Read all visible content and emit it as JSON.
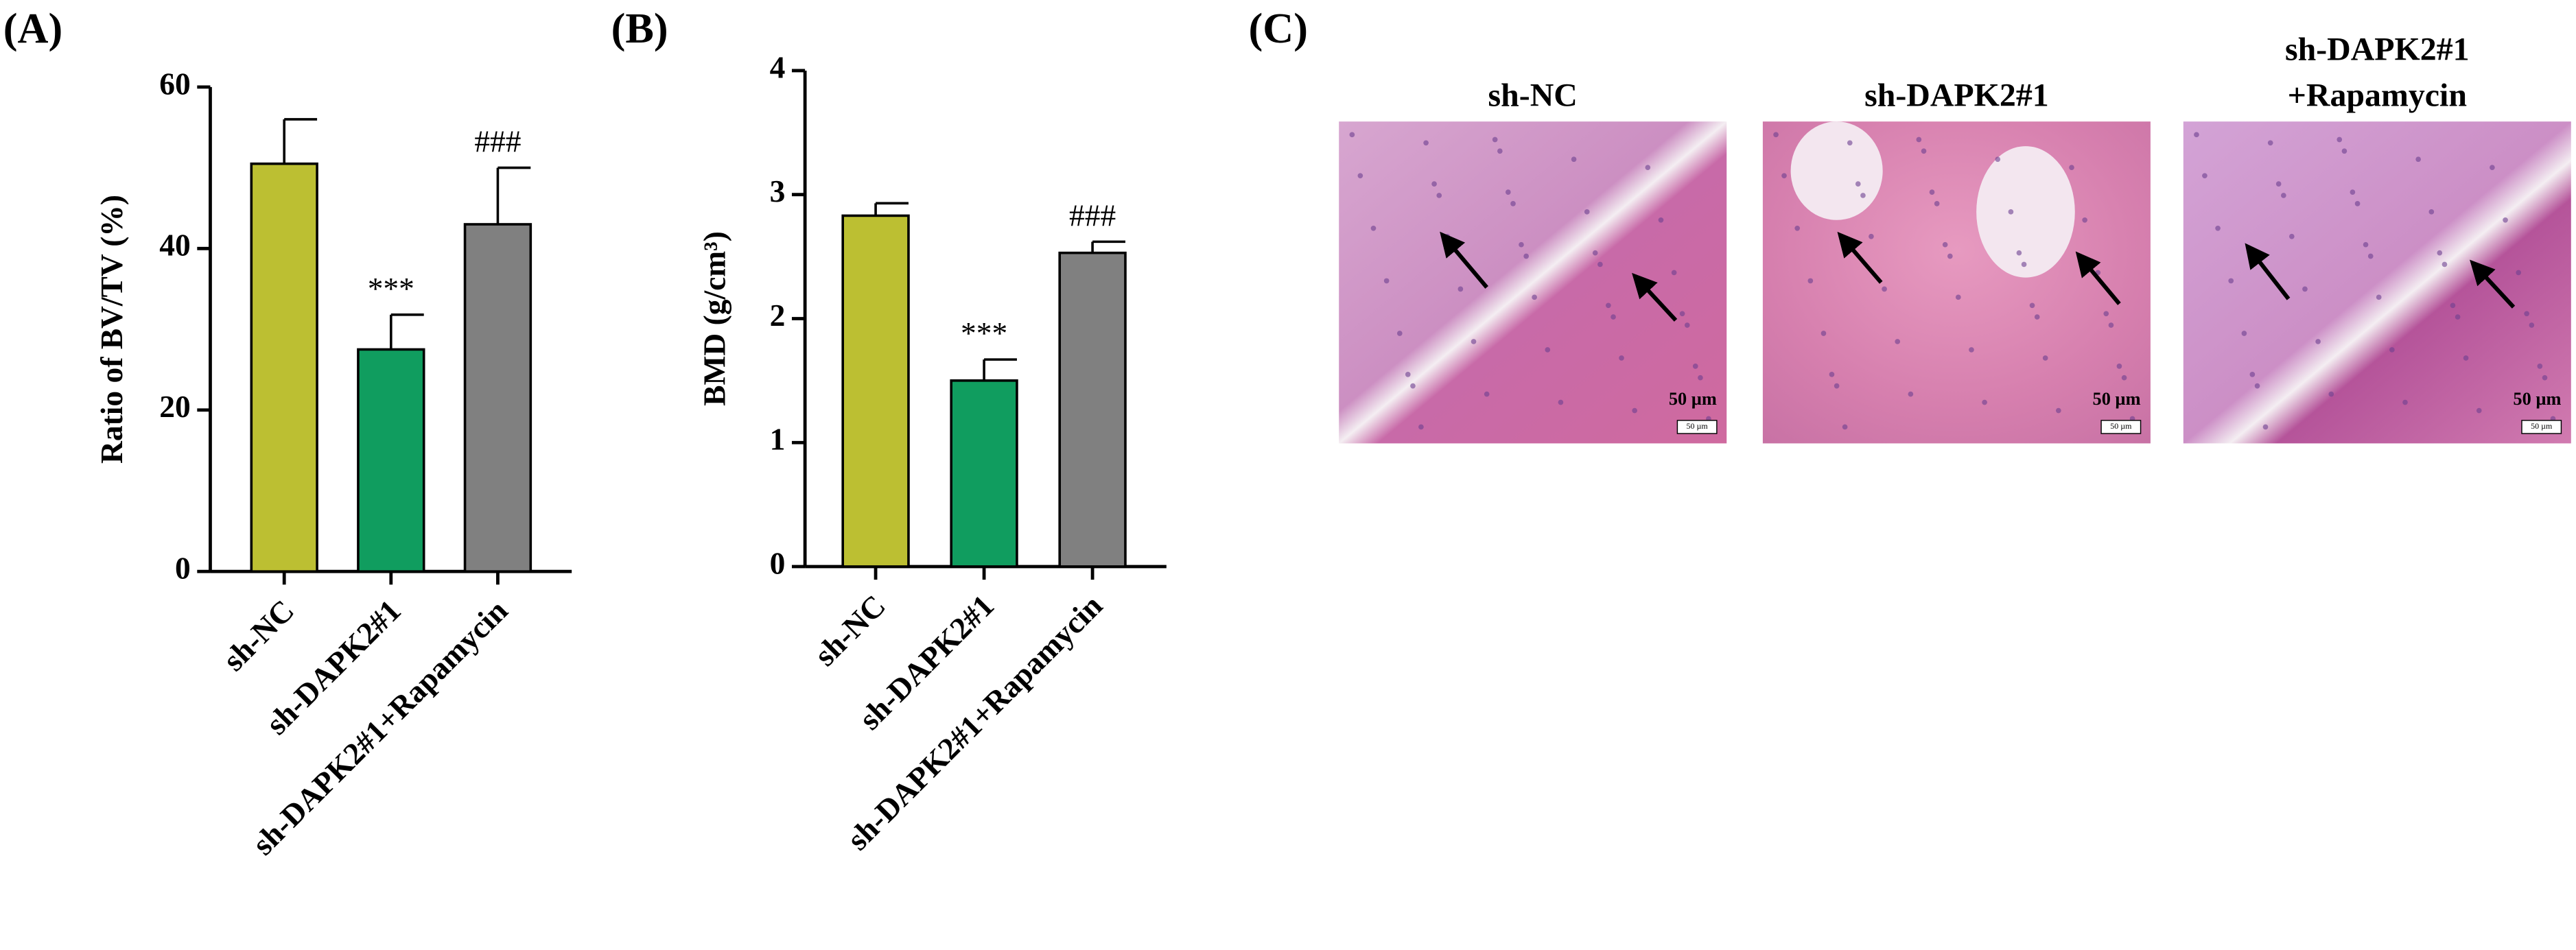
{
  "chart_data": [
    {
      "type": "bar",
      "title": "(A)",
      "ylabel": "Ratio of BV/TV (%)",
      "categories": [
        "sh-NC",
        "sh-DAPK2#1",
        "sh-DAPK2#1+Rapamycin"
      ],
      "values": [
        50.5,
        27.5,
        43
      ],
      "errors": [
        5.5,
        4.3,
        7
      ],
      "colors": [
        "#bcbf32",
        "#109d5f",
        "#808080"
      ],
      "annotations": [
        null,
        "***",
        "###"
      ],
      "ylim": [
        0,
        60
      ],
      "yticks": [
        0,
        20,
        40,
        60
      ]
    },
    {
      "type": "bar",
      "title": "(B)",
      "ylabel": "BMD (g/cm³)",
      "categories": [
        "sh-NC",
        "sh-DAPK2#1",
        "sh-DAPK2#1+Rapamycin"
      ],
      "values": [
        2.83,
        1.5,
        2.53
      ],
      "errors": [
        0.1,
        0.17,
        0.09
      ],
      "colors": [
        "#bcbf32",
        "#109d5f",
        "#808080"
      ],
      "annotations": [
        null,
        "***",
        "###"
      ],
      "ylim": [
        0,
        4
      ],
      "yticks": [
        0,
        1,
        2,
        3,
        4
      ]
    }
  ],
  "panel_c": {
    "title": "(C)",
    "scale": "50 µm",
    "images": [
      {
        "label": [
          "sh-NC"
        ]
      },
      {
        "label": [
          "sh-DAPK2#1"
        ]
      },
      {
        "label": [
          "sh-DAPK2#1",
          "+Rapamycin"
        ]
      }
    ]
  }
}
